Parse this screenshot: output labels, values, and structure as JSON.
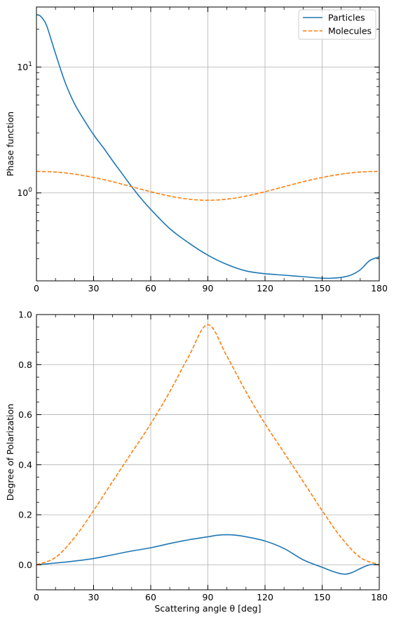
{
  "chart_data": [
    {
      "type": "line",
      "ylabel": "Phase function",
      "yscale": "log",
      "ylim": [
        0.2,
        30
      ],
      "xlim": [
        0,
        180
      ],
      "xticks": [
        0,
        30,
        60,
        90,
        120,
        150,
        180
      ],
      "xticklabels": [
        "0",
        "30",
        "60",
        "90",
        "120",
        "150",
        "180"
      ],
      "yticks": [
        1,
        10
      ],
      "yticklabel_base": [
        "10",
        "10"
      ],
      "yticklabel_exp": [
        "0",
        "1"
      ],
      "grid": true,
      "legend_position": "top-right",
      "series": [
        {
          "name": "Particles",
          "color": "#1f77b4",
          "style": "solid",
          "x": [
            0,
            2,
            5,
            8,
            10,
            15,
            20,
            25,
            30,
            35,
            40,
            45,
            50,
            55,
            60,
            70,
            80,
            90,
            100,
            110,
            120,
            130,
            140,
            150,
            155,
            160,
            165,
            170,
            175,
            180
          ],
          "y": [
            26,
            25.5,
            22,
            16,
            12.8,
            7.6,
            5.1,
            3.8,
            2.9,
            2.3,
            1.8,
            1.42,
            1.12,
            0.9,
            0.74,
            0.52,
            0.4,
            0.32,
            0.27,
            0.24,
            0.228,
            0.222,
            0.216,
            0.21,
            0.21,
            0.213,
            0.222,
            0.245,
            0.29,
            0.31
          ]
        },
        {
          "name": "Molecules",
          "color": "#ff7f0e",
          "style": "dashed",
          "x": [
            0,
            10,
            20,
            30,
            40,
            50,
            60,
            70,
            80,
            90,
            100,
            110,
            120,
            130,
            140,
            150,
            160,
            170,
            180
          ],
          "y": [
            1.48,
            1.466,
            1.41,
            1.3265,
            1.2273,
            1.1199,
            1.0219,
            0.9428,
            0.8918,
            0.874,
            0.8918,
            0.9428,
            1.0219,
            1.1199,
            1.2273,
            1.3265,
            1.41,
            1.466,
            1.48
          ]
        }
      ]
    },
    {
      "type": "line",
      "xlabel": "Scattering angle θ [deg]",
      "ylabel": "Degree of Polarization",
      "xlim": [
        0,
        180
      ],
      "ylim": [
        -0.1,
        1.0
      ],
      "xticks": [
        0,
        30,
        60,
        90,
        120,
        150,
        180
      ],
      "xticklabels": [
        "0",
        "30",
        "60",
        "90",
        "120",
        "150",
        "180"
      ],
      "yticks": [
        0.0,
        0.2,
        0.4,
        0.6,
        0.8,
        1.0
      ],
      "yticklabels": [
        "0.0",
        "0.2",
        "0.4",
        "0.6",
        "0.8",
        "1.0"
      ],
      "grid": true,
      "series": [
        {
          "name": "Particles",
          "color": "#1f77b4",
          "style": "solid",
          "x": [
            0,
            10,
            20,
            30,
            40,
            50,
            60,
            70,
            80,
            90,
            95,
            100,
            105,
            110,
            120,
            130,
            140,
            150,
            155,
            160,
            163,
            166,
            170,
            175,
            180
          ],
          "y": [
            0.0,
            0.007,
            0.015,
            0.025,
            0.04,
            0.055,
            0.068,
            0.085,
            0.1,
            0.112,
            0.118,
            0.12,
            0.118,
            0.112,
            0.095,
            0.065,
            0.02,
            -0.01,
            -0.025,
            -0.036,
            -0.037,
            -0.03,
            -0.015,
            0.0,
            0.0
          ]
        },
        {
          "name": "Molecules",
          "color": "#ff7f0e",
          "style": "dashed",
          "x": [
            0,
            10,
            20,
            30,
            40,
            50,
            60,
            70,
            80,
            90,
            100,
            110,
            120,
            130,
            140,
            150,
            160,
            170,
            180
          ],
          "y": [
            0.0,
            0.0293,
            0.1089,
            0.2166,
            0.3331,
            0.4482,
            0.5636,
            0.6916,
            0.8336,
            0.96,
            0.8336,
            0.6916,
            0.5636,
            0.4482,
            0.3331,
            0.2166,
            0.1089,
            0.0293,
            0.0
          ]
        }
      ]
    }
  ]
}
